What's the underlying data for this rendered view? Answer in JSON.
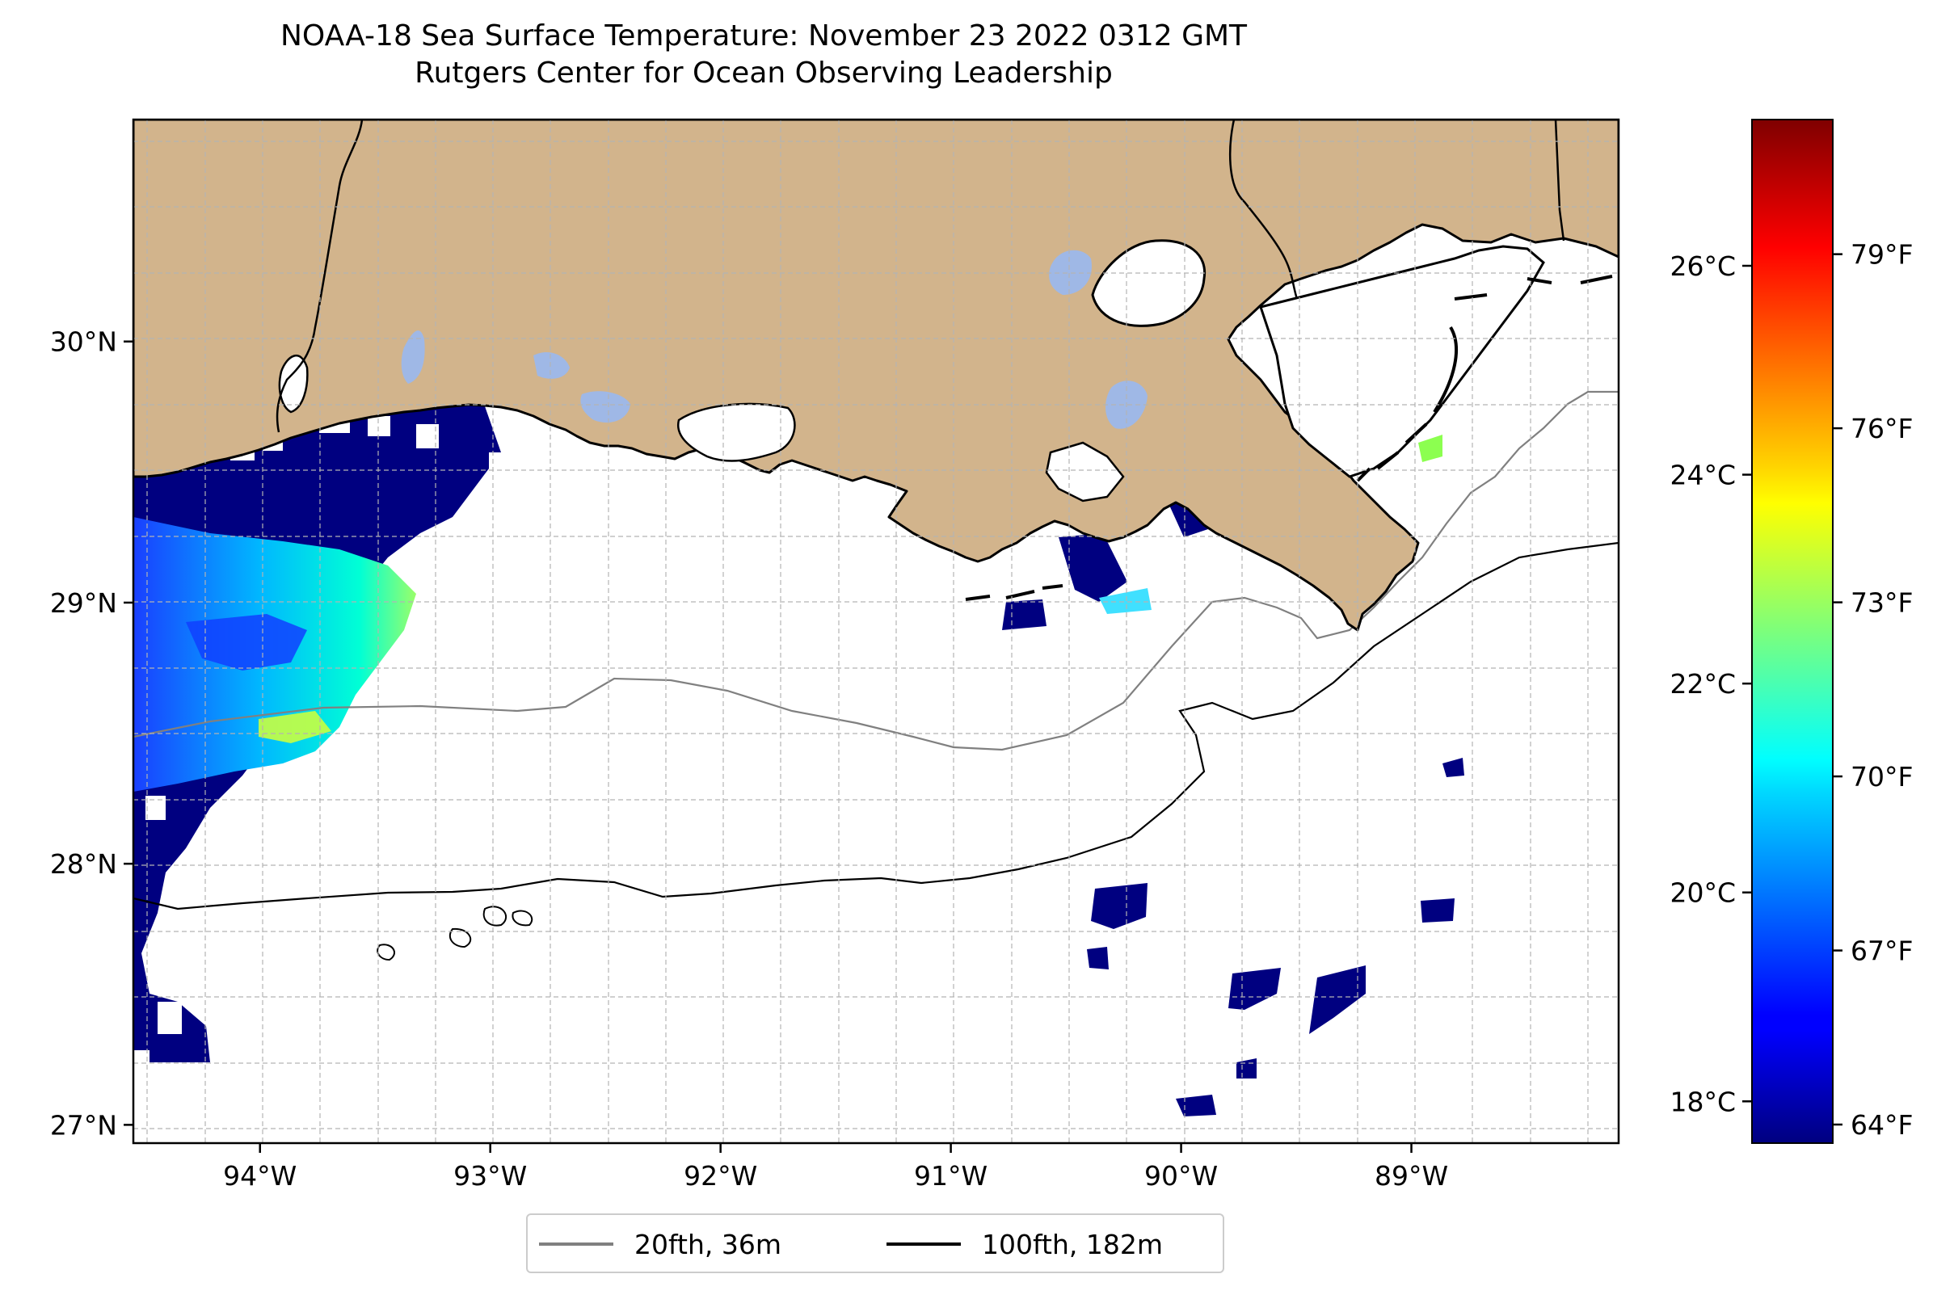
{
  "title": {
    "line1": "NOAA-18 Sea Surface Temperature: November 23 2022 0312 GMT",
    "line2": "Rutgers Center for Ocean Observing Leadership"
  },
  "map": {
    "lon_range": [
      -94.55,
      -88.1
    ],
    "lat_range": [
      26.93,
      30.85
    ],
    "x_ticks": [
      {
        "lon": -94,
        "label": "94°W"
      },
      {
        "lon": -93,
        "label": "93°W"
      },
      {
        "lon": -92,
        "label": "92°W"
      },
      {
        "lon": -91,
        "label": "91°W"
      },
      {
        "lon": -90,
        "label": "90°W"
      },
      {
        "lon": -89,
        "label": "89°W"
      }
    ],
    "y_ticks": [
      {
        "lat": 27,
        "label": "27°N"
      },
      {
        "lat": 28,
        "label": "28°N"
      },
      {
        "lat": 29,
        "label": "29°N"
      },
      {
        "lat": 30,
        "label": "30°N"
      }
    ],
    "gridlines": true,
    "land_color": "#d2b48c",
    "lake_color": "#9fb8e6"
  },
  "colorbar": {
    "colormap": "jet",
    "celsius_ticks": [
      {
        "value": 18,
        "label": "18°C"
      },
      {
        "value": 20,
        "label": "20°C"
      },
      {
        "value": 22,
        "label": "22°C"
      },
      {
        "value": 24,
        "label": "24°C"
      },
      {
        "value": 26,
        "label": "26°C"
      }
    ],
    "fahrenheit_ticks": [
      {
        "value": 64,
        "label": "64°F"
      },
      {
        "value": 67,
        "label": "67°F"
      },
      {
        "value": 70,
        "label": "70°F"
      },
      {
        "value": 73,
        "label": "73°F"
      },
      {
        "value": 76,
        "label": "76°F"
      },
      {
        "value": 79,
        "label": "79°F"
      }
    ],
    "celsius_range": [
      17.6,
      27.4
    ]
  },
  "legend": {
    "placement": "bottom-center",
    "items": [
      {
        "label": "20fth, 36m",
        "color": "#808080"
      },
      {
        "label": "100fth, 182m",
        "color": "#000000"
      }
    ]
  }
}
